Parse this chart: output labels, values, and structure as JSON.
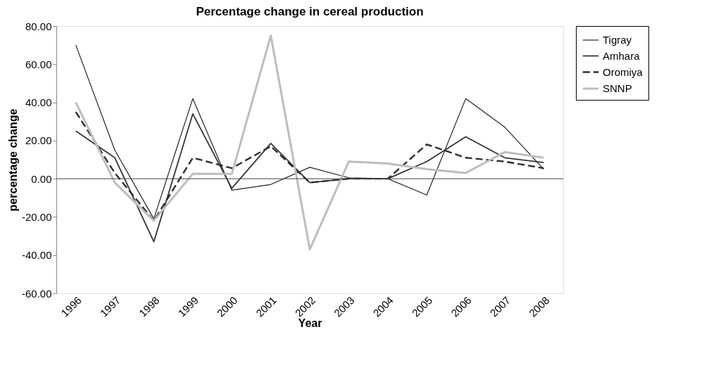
{
  "chart_data": {
    "type": "line",
    "title": "Percentage change in cereal production",
    "xlabel": "Year",
    "ylabel": "percentage change",
    "categories": [
      "1996",
      "1997",
      "1998",
      "1999",
      "2000",
      "2001",
      "2002",
      "2003",
      "2004",
      "2005",
      "2006",
      "2007",
      "2008"
    ],
    "series": [
      {
        "name": "Tigray",
        "color": "#222222",
        "line_style": "solid",
        "values": [
          70,
          15,
          -21,
          42,
          -6,
          -3,
          6,
          0.5,
          0,
          -8.5,
          42,
          27,
          5
        ]
      },
      {
        "name": "Amhara",
        "color": "#333333",
        "line_style": "solid",
        "values": [
          25,
          11,
          -33,
          34,
          -5,
          18.5,
          -2,
          0,
          0,
          9,
          22,
          11,
          8.5
        ]
      },
      {
        "name": "Oromiya",
        "color": "#2e2e2e",
        "line_style": "dashed",
        "values": [
          35,
          3,
          -22,
          11,
          5.5,
          17,
          -2,
          0,
          0,
          18,
          11,
          9,
          5.5
        ]
      },
      {
        "name": "SNNP",
        "color": "#bdbdbd",
        "line_style": "solid",
        "values": [
          40,
          -2,
          -22,
          2.6,
          2.5,
          75,
          -37,
          9,
          8,
          5,
          3,
          14,
          11
        ]
      }
    ],
    "ylim": [
      -60,
      80
    ],
    "yticks": [
      {
        "value": -60,
        "label": "-60.00"
      },
      {
        "value": -40,
        "label": "-40.00"
      },
      {
        "value": -20,
        "label": "-20.00"
      },
      {
        "value": 0,
        "label": "0.00"
      },
      {
        "value": 20,
        "label": "20.00"
      },
      {
        "value": 40,
        "label": "40.00"
      },
      {
        "value": 60,
        "label": "60.00"
      },
      {
        "value": 80,
        "label": "80.00"
      }
    ],
    "ref_lines": [
      {
        "axis": "y",
        "value": 0,
        "color": "#444444"
      }
    ],
    "grid": false,
    "legend": "right",
    "marker": "none"
  }
}
